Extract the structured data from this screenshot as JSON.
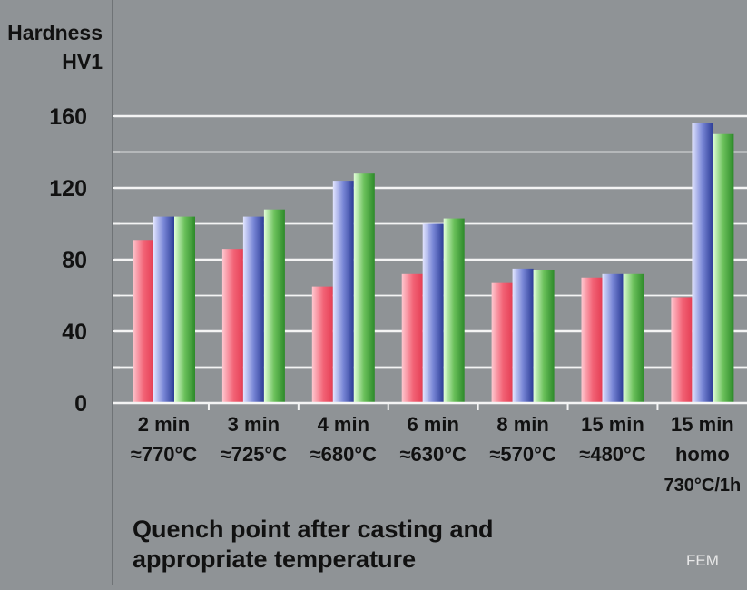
{
  "chart_data": {
    "type": "bar",
    "ylabel": [
      "Hardness",
      "HV1"
    ],
    "yticks": [
      0,
      40,
      80,
      120,
      160
    ],
    "ylim": [
      0,
      160
    ],
    "grid": true,
    "categories": [
      [
        "2 min",
        "≈770°C"
      ],
      [
        "3 min",
        "≈725°C"
      ],
      [
        "4 min",
        "≈680°C"
      ],
      [
        "6 min",
        "≈630°C"
      ],
      [
        "8 min",
        "≈570°C"
      ],
      [
        "15 min",
        "≈480°C"
      ],
      [
        "15 min",
        "homo",
        "730°C/1h"
      ]
    ],
    "series": [
      {
        "values": [
          91,
          86,
          65,
          72,
          67,
          70,
          59
        ]
      },
      {
        "values": [
          104,
          104,
          124,
          100,
          75,
          72,
          156
        ]
      },
      {
        "values": [
          104,
          108,
          128,
          103,
          74,
          72,
          150
        ]
      }
    ],
    "xlabel": [
      "Quench point after casting and",
      "appropriate temperature"
    ]
  },
  "colors": {
    "background": "#8f9396",
    "gridline": "#f4f4f4",
    "series": [
      "#ee4f63",
      "#3f4fa8",
      "#3d9a37"
    ]
  },
  "footer": {
    "source": "FEM"
  }
}
